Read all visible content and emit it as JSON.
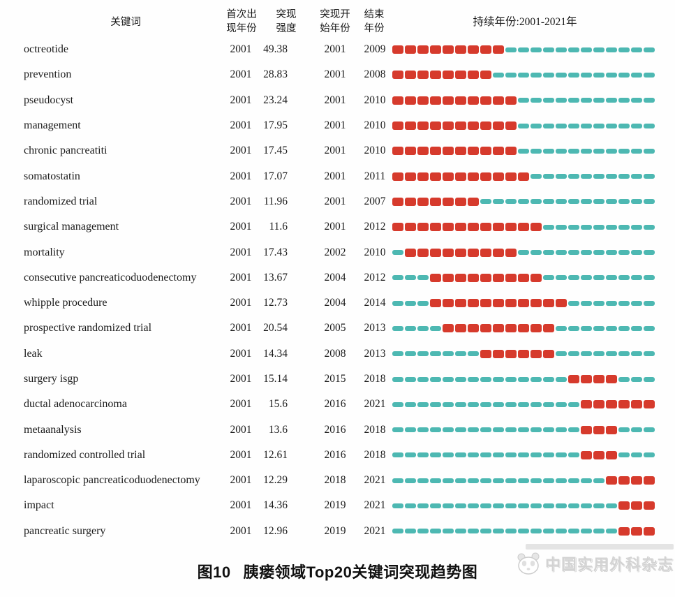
{
  "header": {
    "keyword": "关键词",
    "first_year_line1": "首次出",
    "first_year_line2": "现年份",
    "strength_line1": "突现",
    "strength_line2": "强度",
    "start_year_line1": "突现开",
    "start_year_line2": "始年份",
    "end_year_line1": "结束",
    "end_year_line2": "年份",
    "duration": "持续年份:2001-2021年"
  },
  "colors": {
    "burst": "#d63a2c",
    "base": "#4db8b2"
  },
  "caption": {
    "label": "图10",
    "title": "胰瘘领域Top20关键词突现趋势图"
  },
  "watermark": {
    "text": "中国实用外科杂志",
    "icon": "panda-logo-icon"
  },
  "chart_data": {
    "type": "bar",
    "subtype": "keyword-burst-timeline (CiteSpace style, horizontal year segments)",
    "title": "图10 胰瘘领域Top20关键词突现趋势图",
    "columns": [
      "关键词",
      "首次出现年份",
      "突现强度",
      "突现开始年份",
      "结束年份",
      "持续年份:2001-2021年"
    ],
    "timeline_range": [
      2001,
      2021
    ],
    "legend": {
      "burst_segment_color": "#d63a2c",
      "non_burst_segment_color": "#4db8b2"
    },
    "rows": [
      {
        "keyword": "octreotide",
        "first_year": 2001,
        "strength": "49.38",
        "burst_start": 2001,
        "burst_end": 2009
      },
      {
        "keyword": "prevention",
        "first_year": 2001,
        "strength": "28.83",
        "burst_start": 2001,
        "burst_end": 2008
      },
      {
        "keyword": "pseudocyst",
        "first_year": 2001,
        "strength": "23.24",
        "burst_start": 2001,
        "burst_end": 2010
      },
      {
        "keyword": "management",
        "first_year": 2001,
        "strength": "17.95",
        "burst_start": 2001,
        "burst_end": 2010
      },
      {
        "keyword": "chronic pancreatiti",
        "first_year": 2001,
        "strength": "17.45",
        "burst_start": 2001,
        "burst_end": 2010
      },
      {
        "keyword": "somatostatin",
        "first_year": 2001,
        "strength": "17.07",
        "burst_start": 2001,
        "burst_end": 2011
      },
      {
        "keyword": "randomized trial",
        "first_year": 2001,
        "strength": "11.96",
        "burst_start": 2001,
        "burst_end": 2007
      },
      {
        "keyword": "surgical management",
        "first_year": 2001,
        "strength": "11.6",
        "burst_start": 2001,
        "burst_end": 2012
      },
      {
        "keyword": "mortality",
        "first_year": 2001,
        "strength": "17.43",
        "burst_start": 2002,
        "burst_end": 2010
      },
      {
        "keyword": "consecutive pancreaticoduodenectomy",
        "first_year": 2001,
        "strength": "13.67",
        "burst_start": 2004,
        "burst_end": 2012
      },
      {
        "keyword": "whipple procedure",
        "first_year": 2001,
        "strength": "12.73",
        "burst_start": 2004,
        "burst_end": 2014
      },
      {
        "keyword": "prospective randomized trial",
        "first_year": 2001,
        "strength": "20.54",
        "burst_start": 2005,
        "burst_end": 2013
      },
      {
        "keyword": "leak",
        "first_year": 2001,
        "strength": "14.34",
        "burst_start": 2008,
        "burst_end": 2013
      },
      {
        "keyword": "surgery isgp",
        "first_year": 2001,
        "strength": "15.14",
        "burst_start": 2015,
        "burst_end": 2018
      },
      {
        "keyword": "ductal adenocarcinoma",
        "first_year": 2001,
        "strength": "15.6",
        "burst_start": 2016,
        "burst_end": 2021
      },
      {
        "keyword": "metaanalysis",
        "first_year": 2001,
        "strength": "13.6",
        "burst_start": 2016,
        "burst_end": 2018
      },
      {
        "keyword": "randomized controlled trial",
        "first_year": 2001,
        "strength": "12.61",
        "burst_start": 2016,
        "burst_end": 2018
      },
      {
        "keyword": "laparoscopic pancreaticoduodenectomy",
        "first_year": 2001,
        "strength": "12.29",
        "burst_start": 2018,
        "burst_end": 2021
      },
      {
        "keyword": "impact",
        "first_year": 2001,
        "strength": "14.36",
        "burst_start": 2019,
        "burst_end": 2021
      },
      {
        "keyword": "pancreatic surgery",
        "first_year": 2001,
        "strength": "12.96",
        "burst_start": 2019,
        "burst_end": 2021
      }
    ]
  }
}
